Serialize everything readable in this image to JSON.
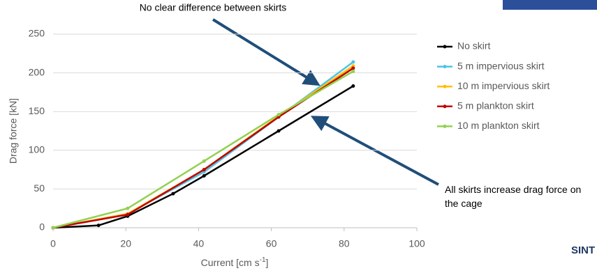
{
  "chart_data": {
    "type": "line",
    "y_label": "Drag force [kN]",
    "x_label": {
      "text": "Current [cm s",
      "superscript": "-1",
      "end": "]"
    },
    "annotations": [
      "No clear difference between skirts",
      "All skirts increase drag force on the cage"
    ],
    "logo": "SINT",
    "xlim": [
      0,
      100
    ],
    "xticks": [
      0,
      20,
      40,
      60,
      80,
      100
    ],
    "ylim": [
      0,
      250
    ],
    "yticks": [
      0,
      50,
      100,
      150,
      200,
      250
    ],
    "grid": true,
    "legend": "right",
    "series": [
      {
        "name": "No skirt",
        "color": "#000000",
        "x": [
          0,
          12.5,
          20.5,
          33,
          41.5,
          62,
          82.5
        ],
        "values": [
          0,
          3,
          15,
          44,
          67,
          125,
          183
        ]
      },
      {
        "name": "5 m impervious skirt",
        "color": "#4dc3e6",
        "x": [
          0,
          20.5,
          41.5,
          62,
          82.5
        ],
        "values": [
          0,
          18,
          72,
          143,
          214
        ]
      },
      {
        "name": "10 m impervious skirt",
        "color": "#ffc000",
        "x": [
          0,
          20.5,
          41.5,
          62,
          82.5
        ],
        "values": [
          0,
          18,
          75,
          144,
          209
        ]
      },
      {
        "name": "5 m plankton skirt",
        "color": "#c00000",
        "x": [
          0,
          20.5,
          41.5,
          62,
          82.5
        ],
        "values": [
          0,
          17,
          75,
          143,
          206
        ]
      },
      {
        "name": "10 m plankton skirt",
        "color": "#92d050",
        "x": [
          0,
          20.5,
          41.5,
          62,
          82.5
        ],
        "values": [
          0,
          25,
          86,
          146,
          202
        ]
      }
    ]
  }
}
